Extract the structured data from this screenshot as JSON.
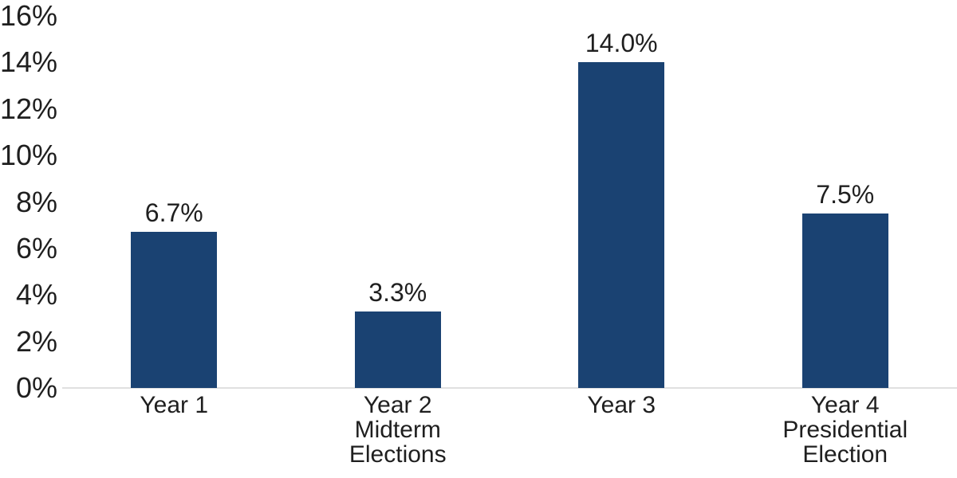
{
  "chart_data": {
    "type": "bar",
    "title": "",
    "xlabel": "",
    "ylabel": "",
    "categories": [
      "Year 1",
      "Year 2\nMidterm\nElections",
      "Year 3",
      "Year 4\nPresidential\nElection"
    ],
    "values": [
      6.7,
      3.3,
      14.0,
      7.5
    ],
    "data_labels": [
      "6.7%",
      "3.3%",
      "14.0%",
      "7.5%"
    ],
    "ylim": [
      0,
      16
    ],
    "y_ticks": [
      0,
      2,
      4,
      6,
      8,
      10,
      12,
      14,
      16
    ],
    "y_tick_labels": [
      "0%",
      "2%",
      "4%",
      "6%",
      "8%",
      "10%",
      "12%",
      "14%",
      "16%"
    ],
    "grid": false,
    "legend": false,
    "bar_color": "#1A4272",
    "axis_line_color": "#E0E0E0",
    "text_color": "#1F1F1F"
  }
}
